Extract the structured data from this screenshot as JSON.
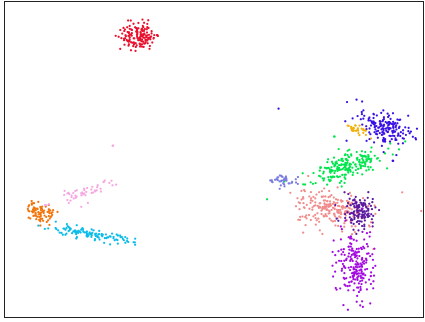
{
  "chart_data": {
    "type": "scatter",
    "title": "",
    "xlabel": "",
    "ylabel": "",
    "xlim": [
      0,
      100
    ],
    "ylim": [
      0,
      100
    ],
    "grid": false,
    "legend": "none",
    "axes_ticks": false,
    "series": [
      {
        "color": "#e8112d",
        "point_count": 150,
        "cluster": {
          "cx": 31.8,
          "cy": 89.1,
          "sx": 2.2,
          "sy": 2.2,
          "angle": -40,
          "scatter": 0.0
        }
      },
      {
        "color": "#3a10e5",
        "point_count": 170,
        "cluster": {
          "cx": 90.5,
          "cy": 60.3,
          "sx": 3.3,
          "sy": 2.2,
          "angle": -30,
          "scatter": 0.6
        }
      },
      {
        "color": "#f2b10b",
        "point_count": 30,
        "cluster": {
          "cx": 84.0,
          "cy": 59.6,
          "sx": 1.4,
          "sy": 0.9,
          "angle": -35,
          "scatter": 0.0
        }
      },
      {
        "color": "#00e64d",
        "point_count": 210,
        "cluster": {
          "cx": 81.0,
          "cy": 47.6,
          "sx": 5.2,
          "sy": 1.8,
          "angle": 25,
          "scatter": 0.3
        }
      },
      {
        "color": "#7b7be0",
        "point_count": 40,
        "cluster": {
          "cx": 66.5,
          "cy": 43.5,
          "sx": 1.8,
          "sy": 1.0,
          "angle": -15,
          "scatter": 0.2
        }
      },
      {
        "color": "#f08c8c",
        "point_count": 220,
        "cluster": {
          "cx": 78.1,
          "cy": 34.5,
          "sx": 4.7,
          "sy": 2.6,
          "angle": -10,
          "scatter": 0.2
        }
      },
      {
        "color": "#5b1aa0",
        "point_count": 130,
        "cluster": {
          "cx": 85.0,
          "cy": 33.2,
          "sx": 1.8,
          "sy": 2.6,
          "angle": 0,
          "scatter": 0.2
        }
      },
      {
        "color": "#a30ae0",
        "point_count": 200,
        "cluster": {
          "cx": 84.0,
          "cy": 16.5,
          "sx": 2.2,
          "sy": 5.2,
          "angle": 5,
          "scatter": 0.2
        }
      },
      {
        "color": "#f2750b",
        "point_count": 80,
        "cluster": {
          "cx": 8.5,
          "cy": 32.9,
          "sx": 1.8,
          "sy": 1.4,
          "angle": -15,
          "scatter": 0.1
        }
      },
      {
        "color": "#0bbde8",
        "point_count": 120,
        "cluster": {
          "cx": 19.8,
          "cy": 26.3,
          "sx": 5.6,
          "sy": 0.8,
          "angle": -12,
          "scatter": 0.0
        }
      },
      {
        "color": "#f5a8e0",
        "point_count": 50,
        "cluster": {
          "cx": 19.5,
          "cy": 39.9,
          "sx": 3.3,
          "sy": 1.0,
          "angle": 20,
          "scatter": 0.4
        }
      }
    ]
  }
}
